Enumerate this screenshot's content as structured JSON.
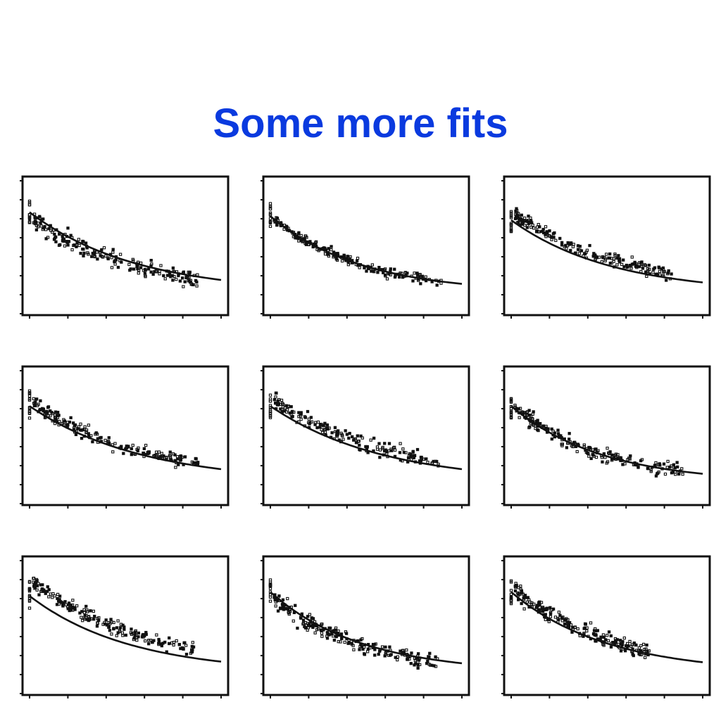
{
  "slide": {
    "title": "Some more fits"
  },
  "colors": {
    "title": "#0a3adf",
    "ink": "#111111"
  },
  "chart_data": [
    {
      "type": "scatter",
      "panel": 1,
      "xlim": [
        0,
        5
      ],
      "ylim": [
        0,
        7
      ],
      "curve": {
        "a": 4.1,
        "k": 0.36,
        "b": 1.1
      },
      "cloud": {
        "n": 190,
        "xmax": 4.4,
        "bias": -0.25,
        "sd": 0.45,
        "seed": 11
      }
    },
    {
      "type": "scatter",
      "panel": 2,
      "xlim": [
        0,
        5
      ],
      "ylim": [
        0,
        7
      ],
      "curve": {
        "a": 3.9,
        "k": 0.42,
        "b": 1.1
      },
      "cloud": {
        "n": 200,
        "xmax": 4.5,
        "bias": 0.0,
        "sd": 0.25,
        "seed": 23
      }
    },
    {
      "type": "scatter",
      "panel": 3,
      "xlim": [
        0,
        5
      ],
      "ylim": [
        0,
        7
      ],
      "curve": {
        "a": 3.7,
        "k": 0.38,
        "b": 1.1
      },
      "cloud": {
        "n": 200,
        "xmax": 4.2,
        "bias": 0.45,
        "sd": 0.35,
        "seed": 37
      }
    },
    {
      "type": "scatter",
      "panel": 4,
      "xlim": [
        0,
        5
      ],
      "ylim": [
        0,
        7
      ],
      "curve": {
        "a": 3.9,
        "k": 0.34,
        "b": 1.1
      },
      "cloud": {
        "n": 190,
        "xmax": 4.4,
        "bias": 0.25,
        "sd": 0.3,
        "seed": 41
      }
    },
    {
      "type": "scatter",
      "panel": 5,
      "xlim": [
        0,
        5
      ],
      "ylim": [
        0,
        7
      ],
      "curve": {
        "a": 3.9,
        "k": 0.34,
        "b": 1.1
      },
      "cloud": {
        "n": 190,
        "xmax": 4.4,
        "bias": 0.45,
        "sd": 0.4,
        "seed": 53
      }
    },
    {
      "type": "scatter",
      "panel": 6,
      "xlim": [
        0,
        5
      ],
      "ylim": [
        0,
        7
      ],
      "curve": {
        "a": 3.9,
        "k": 0.42,
        "b": 1.1
      },
      "cloud": {
        "n": 200,
        "xmax": 4.5,
        "bias": 0.05,
        "sd": 0.35,
        "seed": 67
      }
    },
    {
      "type": "scatter",
      "panel": 7,
      "xlim": [
        0,
        5
      ],
      "ylim": [
        0,
        7
      ],
      "curve": {
        "a": 3.9,
        "k": 0.38,
        "b": 1.1
      },
      "cloud": {
        "n": 200,
        "xmax": 4.3,
        "bias": 0.85,
        "sd": 0.35,
        "seed": 71
      }
    },
    {
      "type": "scatter",
      "panel": 8,
      "xlim": [
        0,
        5
      ],
      "ylim": [
        0,
        7
      ],
      "curve": {
        "a": 4.1,
        "k": 0.42,
        "b": 1.1
      },
      "cloud": {
        "n": 210,
        "xmax": 4.4,
        "bias": -0.15,
        "sd": 0.4,
        "seed": 83
      }
    },
    {
      "type": "scatter",
      "panel": 9,
      "xlim": [
        0,
        5
      ],
      "ylim": [
        0,
        7
      ],
      "curve": {
        "a": 4.1,
        "k": 0.4,
        "b": 1.1
      },
      "cloud": {
        "n": 200,
        "xmax": 3.6,
        "bias": 0.25,
        "sd": 0.4,
        "seed": 97
      }
    }
  ]
}
